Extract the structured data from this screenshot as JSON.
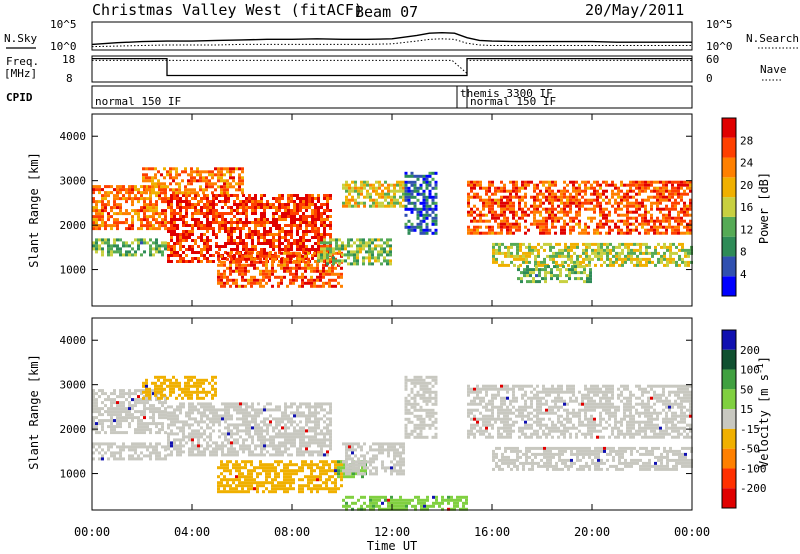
{
  "header": {
    "station": "Christmas Valley West (fitACF)",
    "beam": "Beam 07",
    "date": "20/May/2011"
  },
  "left_labels": {
    "nsky": "N.Sky",
    "freq_line1": "Freq.",
    "freq_line2": "[MHz]",
    "cpid": "CPID"
  },
  "right_labels": {
    "nsearch": "N.Search",
    "nave": "Nave"
  },
  "noise_axis": {
    "left_ticks": [
      "10^5",
      "10^0"
    ],
    "right_ticks": [
      "10^5",
      "10^0"
    ]
  },
  "freq_axis": {
    "left_ticks": [
      "18",
      "8"
    ],
    "right_ticks": [
      "60",
      "0"
    ]
  },
  "cpid_segments": [
    {
      "label": "normal 150 IF",
      "start_hour": 0
    },
    {
      "label": "themis 3300 IF",
      "start_hour": 14.6
    },
    {
      "label": "normal 150 IF",
      "start_hour": 15.0
    }
  ],
  "x_axis": {
    "label": "Time UT",
    "ticks": [
      "00:00",
      "04:00",
      "08:00",
      "12:00",
      "16:00",
      "20:00",
      "00:00"
    ]
  },
  "chart_data": [
    {
      "type": "line",
      "name": "noise-panel",
      "ylabel": "N.Sky",
      "y2label": "N.Search",
      "x_hours": [
        0,
        1,
        2,
        3,
        4,
        5,
        6,
        7,
        8,
        9,
        10,
        11,
        12,
        13,
        13.5,
        14,
        14.5,
        15,
        15.5,
        16,
        17,
        18,
        19,
        20,
        21,
        22,
        23,
        24
      ],
      "series": [
        {
          "name": "N.Sky",
          "values": [
            1.0,
            1.3,
            1.5,
            1.6,
            1.6,
            1.7,
            1.8,
            1.9,
            1.9,
            2.0,
            1.9,
            1.9,
            2.0,
            2.6,
            3.0,
            3.1,
            3.0,
            2.2,
            1.7,
            1.6,
            1.5,
            1.5,
            1.5,
            1.5,
            1.4,
            1.4,
            1.4,
            1.4
          ]
        },
        {
          "name": "N.Search",
          "values": [
            0.6,
            0.7,
            0.8,
            0.9,
            0.9,
            0.9,
            1.0,
            1.0,
            1.0,
            1.0,
            1.0,
            1.0,
            1.1,
            1.6,
            1.9,
            2.0,
            1.9,
            1.2,
            0.9,
            0.8,
            0.8,
            0.8,
            0.8,
            0.8,
            0.8,
            0.8,
            0.8,
            0.8
          ]
        }
      ]
    },
    {
      "type": "line",
      "name": "frequency-panel",
      "ylabel": "Freq. [MHz]",
      "y2label": "Nave",
      "ylim": [
        8,
        18
      ],
      "y2lim": [
        0,
        60
      ],
      "series": [
        {
          "name": "Freq.",
          "x": [
            0,
            3,
            3,
            15,
            15,
            24
          ],
          "values": [
            17,
            17,
            10.5,
            10.5,
            17,
            17
          ]
        },
        {
          "name": "Nave",
          "x": [
            0,
            14.4,
            14.8,
            15,
            15,
            24
          ],
          "values": [
            50,
            50,
            30,
            20,
            50,
            50
          ]
        }
      ]
    },
    {
      "type": "heatmap",
      "name": "power-panel",
      "xlabel": "",
      "ylabel": "Slant Range [km]",
      "ylim": [
        180,
        4500
      ],
      "yticks": [
        1000,
        2000,
        3000,
        4000
      ],
      "colorbar": {
        "label": "Power [dB]",
        "range": [
          0,
          32
        ],
        "ticks": [
          4,
          8,
          12,
          16,
          20,
          24,
          28
        ]
      },
      "bands": [
        {
          "t0": 0,
          "t1": 3,
          "r0": 1900,
          "r1": 2900,
          "value": 24
        },
        {
          "t0": 0,
          "t1": 3,
          "r0": 1300,
          "r1": 1700,
          "value": 12
        },
        {
          "t0": 3,
          "t1": 9.5,
          "r0": 1200,
          "r1": 2700,
          "value": 28
        },
        {
          "t0": 2,
          "t1": 6,
          "r0": 2700,
          "r1": 3300,
          "value": 24
        },
        {
          "t0": 5,
          "t1": 10,
          "r0": 600,
          "r1": 1400,
          "value": 26
        },
        {
          "t0": 9,
          "t1": 12,
          "r0": 1100,
          "r1": 1700,
          "value": 14
        },
        {
          "t0": 10,
          "t1": 12.5,
          "r0": 2400,
          "r1": 3000,
          "value": 18
        },
        {
          "t0": 12.5,
          "t1": 13.8,
          "r0": 1800,
          "r1": 3200,
          "value": 6
        },
        {
          "t0": 15,
          "t1": 24,
          "r0": 1800,
          "r1": 3000,
          "value": 26
        },
        {
          "t0": 16,
          "t1": 24,
          "r0": 1100,
          "r1": 1600,
          "value": 16
        },
        {
          "t0": 17,
          "t1": 20,
          "r0": 700,
          "r1": 1100,
          "value": 12
        }
      ]
    },
    {
      "type": "heatmap",
      "name": "velocity-panel",
      "xlabel": "Time UT",
      "ylabel": "Slant Range [km]",
      "ylim": [
        180,
        4500
      ],
      "yticks": [
        1000,
        2000,
        3000,
        4000
      ],
      "colorbar": {
        "label": "Velocity [m s^-1]",
        "levels": [
          "200",
          "100",
          "50",
          "15",
          "-15",
          "-50",
          "-100",
          "-200"
        ]
      },
      "bands": [
        {
          "t0": 0,
          "t1": 3,
          "r0": 1900,
          "r1": 2900,
          "value": 0
        },
        {
          "t0": 0,
          "t1": 3,
          "r0": 1300,
          "r1": 1700,
          "value": 0
        },
        {
          "t0": 3,
          "t1": 9.5,
          "r0": 1400,
          "r1": 2600,
          "value": 0
        },
        {
          "t0": 2,
          "t1": 5,
          "r0": 2700,
          "r1": 3200,
          "value": -30
        },
        {
          "t0": 5,
          "t1": 10,
          "r0": 600,
          "r1": 1300,
          "value": -35
        },
        {
          "t0": 9.8,
          "t1": 11,
          "r0": 900,
          "r1": 1300,
          "value": 30
        },
        {
          "t0": 10,
          "t1": 12.5,
          "r0": 1000,
          "r1": 1700,
          "value": 0
        },
        {
          "t0": 12.5,
          "t1": 13.8,
          "r0": 1800,
          "r1": 3200,
          "value": 0
        },
        {
          "t0": 15,
          "t1": 24,
          "r0": 1800,
          "r1": 3000,
          "value": 0
        },
        {
          "t0": 16,
          "t1": 24,
          "r0": 1100,
          "r1": 1600,
          "value": 0
        },
        {
          "t0": 10,
          "t1": 15,
          "r0": 200,
          "r1": 500,
          "value": 25
        }
      ]
    }
  ],
  "colors": {
    "power": [
      "#0000ff",
      "#3050b0",
      "#2e8b57",
      "#55aa55",
      "#c8d040",
      "#f0b000",
      "#ff8000",
      "#ff4000",
      "#e00000"
    ],
    "velocity": {
      "200": "#1010b0",
      "100": "#105030",
      "50": "#40a040",
      "15": "#80d040",
      "0": "#c8c8c0",
      "-15": "#f0b000",
      "-50": "#ff8000",
      "-100": "#ff3000",
      "-200": "#e00000"
    },
    "axis": "#000000"
  }
}
